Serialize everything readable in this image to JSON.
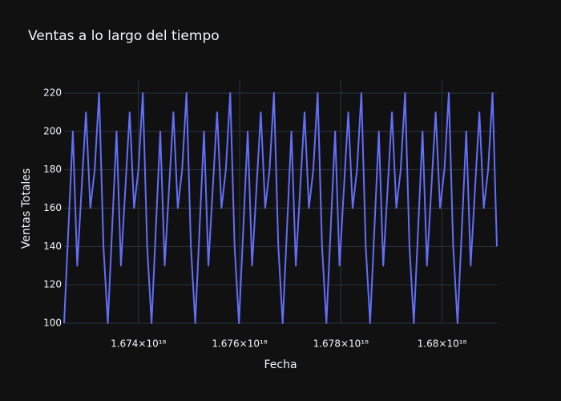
{
  "chart_data": {
    "type": "line",
    "title": "Ventas a lo largo del tiempo",
    "x_label": "Fecha",
    "y_label": "Ventas Totales",
    "color": "#636efa",
    "grid": true,
    "x": [
      1.6725312e+18,
      1.6726176e+18,
      1.672704e+18,
      1.6727904e+18,
      1.6728768e+18,
      1.6729632e+18,
      1.6730496e+18,
      1.673136e+18,
      1.6732224e+18,
      1.6733088e+18,
      1.6733952e+18,
      1.6734816e+18,
      1.673568e+18,
      1.6736544e+18,
      1.6737408e+18,
      1.6738272e+18,
      1.6739136e+18,
      1.674e+18,
      1.6740864e+18,
      1.6741728e+18,
      1.6742592e+18,
      1.6743456e+18,
      1.674432e+18,
      1.6745184e+18,
      1.6746048e+18,
      1.6746912e+18,
      1.6747776e+18,
      1.674864e+18,
      1.6749504e+18,
      1.6750368e+18,
      1.6751232e+18,
      1.6752096e+18,
      1.675296e+18,
      1.6753824e+18,
      1.6754688e+18,
      1.6755552e+18,
      1.6756416e+18,
      1.675728e+18,
      1.6758144e+18,
      1.6759008e+18,
      1.6759872e+18,
      1.6760736e+18,
      1.67616e+18,
      1.6762464e+18,
      1.6763328e+18,
      1.6764192e+18,
      1.6765056e+18,
      1.676592e+18,
      1.6766784e+18,
      1.6767648e+18,
      1.6768512e+18,
      1.6769376e+18,
      1.677024e+18,
      1.6771104e+18,
      1.6771968e+18,
      1.6772832e+18,
      1.6773696e+18,
      1.677456e+18,
      1.6775424e+18,
      1.6776288e+18,
      1.6777152e+18,
      1.6778016e+18,
      1.677888e+18,
      1.6779744e+18,
      1.6780608e+18,
      1.6781472e+18,
      1.6782336e+18,
      1.67832e+18,
      1.6784064e+18,
      1.6784928e+18,
      1.6785792e+18,
      1.6786656e+18,
      1.678752e+18,
      1.6788384e+18,
      1.6789248e+18,
      1.6790112e+18,
      1.6790976e+18,
      1.679184e+18,
      1.6792704e+18,
      1.6793568e+18,
      1.6794432e+18,
      1.6795296e+18,
      1.679616e+18,
      1.6797024e+18,
      1.6797888e+18,
      1.6798752e+18,
      1.6799616e+18,
      1.680048e+18,
      1.6801344e+18,
      1.6802208e+18,
      1.6803072e+18,
      1.6803936e+18,
      1.68048e+18,
      1.6805664e+18,
      1.6806528e+18,
      1.6807392e+18,
      1.6808256e+18,
      1.680912e+18,
      1.6809984e+18,
      1.6810848e+18
    ],
    "values": [
      100,
      150,
      200,
      130,
      170,
      210,
      160,
      180,
      220,
      140,
      100,
      150,
      200,
      130,
      170,
      210,
      160,
      180,
      220,
      140,
      100,
      150,
      200,
      130,
      170,
      210,
      160,
      180,
      220,
      140,
      100,
      150,
      200,
      130,
      170,
      210,
      160,
      180,
      220,
      140,
      100,
      150,
      200,
      130,
      170,
      210,
      160,
      180,
      220,
      140,
      100,
      150,
      200,
      130,
      170,
      210,
      160,
      180,
      220,
      140,
      100,
      150,
      200,
      130,
      170,
      210,
      160,
      180,
      220,
      140,
      100,
      150,
      200,
      130,
      170,
      210,
      160,
      180,
      220,
      140,
      100,
      150,
      200,
      130,
      170,
      210,
      160,
      180,
      220,
      140,
      100,
      150,
      200,
      130,
      170,
      210,
      160,
      180,
      220,
      140
    ],
    "xlim": [
      1.6725312e+18,
      1.6810848e+18
    ],
    "xticks": [
      {
        "value": 1.674e+18,
        "label": "1.674×10¹⁸"
      },
      {
        "value": 1.676e+18,
        "label": "1.676×10¹⁸"
      },
      {
        "value": 1.678e+18,
        "label": "1.678×10¹⁸"
      },
      {
        "value": 1.68e+18,
        "label": "1.68×10¹⁸"
      }
    ],
    "ylim": [
      100,
      226.7
    ],
    "yticks": [
      100,
      120,
      140,
      160,
      180,
      200,
      220
    ]
  }
}
